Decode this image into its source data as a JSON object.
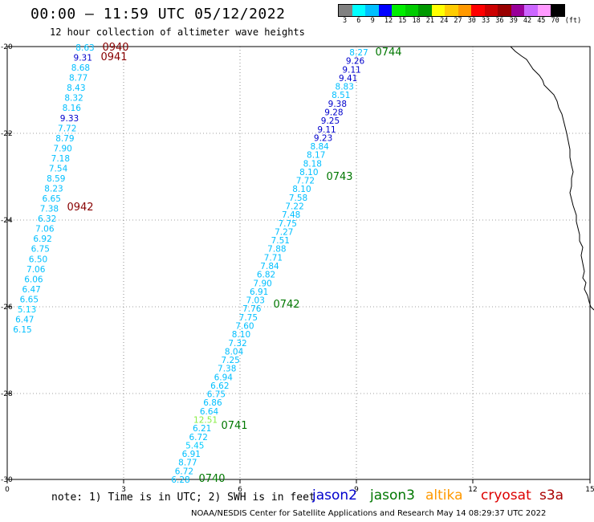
{
  "title": "00:00 – 11:59 UTC 05/12/2022",
  "subtitle": "12 hour collection of altimeter wave heights",
  "color_scale": {
    "colors": [
      "#808080",
      "#00ffff",
      "#00bfff",
      "#0000ff",
      "#00ee00",
      "#00cc00",
      "#009900",
      "#ffff00",
      "#ffcc00",
      "#ff9900",
      "#ff0000",
      "#cc0000",
      "#990000",
      "#990099",
      "#cc66ff",
      "#ff99ff",
      "#000000"
    ],
    "labels": [
      "3",
      "6",
      "9",
      "12",
      "15",
      "18",
      "21",
      "24",
      "27",
      "30",
      "33",
      "36",
      "39",
      "42",
      "45",
      "70",
      "(ft)"
    ]
  },
  "satellite_colors": {
    "jason2": "#0000cc",
    "jason3": "#007700",
    "altika": "#ff9900",
    "cryosat": "#dd0000",
    "s3a": "#aa0000",
    "pass_jason3": "#007700",
    "pass_s3a": "#880000"
  },
  "map": {
    "x_ticks": [
      "0",
      "3",
      "6",
      "9",
      "12",
      "15"
    ],
    "y_ticks": [
      "-20",
      "-22",
      "-24",
      "-26",
      "-28",
      "-30"
    ]
  },
  "passes": [
    {
      "label": "0940",
      "color": "#880000"
    },
    {
      "label": "0941",
      "color": "#880000"
    },
    {
      "label": "0942",
      "color": "#880000"
    },
    {
      "label": "0744",
      "color": "#007700"
    },
    {
      "label": "0743",
      "color": "#007700"
    },
    {
      "label": "0742",
      "color": "#007700"
    },
    {
      "label": "0741",
      "color": "#007700"
    },
    {
      "label": "0740",
      "color": "#007700"
    }
  ],
  "track_west_values": [
    "8.63",
    "9.31",
    "8.68",
    "8.77",
    "8.43",
    "8.32",
    "8.16",
    "9.33",
    "7.72",
    "8.79",
    "7.90",
    "7.18",
    "7.54",
    "8.59",
    "8.23",
    "6.65",
    "7.38",
    "6.32",
    "7.06",
    "6.92",
    "6.75",
    "6.50",
    "7.06",
    "6.06",
    "6.47",
    "6.65",
    "5.13",
    "6.47",
    "6.15"
  ],
  "track_west_colors": [
    "#00bfff",
    "#0000cc",
    "#00bfff",
    "#00bfff",
    "#00bfff",
    "#00bfff",
    "#00bfff",
    "#0000cc",
    "#00bfff",
    "#00bfff",
    "#00bfff",
    "#00bfff",
    "#00bfff",
    "#00bfff",
    "#00bfff",
    "#00bfff",
    "#00bfff",
    "#00bfff",
    "#00bfff",
    "#00bfff",
    "#00bfff",
    "#00bfff",
    "#00bfff",
    "#00bfff",
    "#00bfff",
    "#00bfff",
    "#00ccff",
    "#00bfff",
    "#00bfff"
  ],
  "track_east_values": [
    "8.27",
    "9.26",
    "9.11",
    "9.41",
    "8.83",
    "8.51",
    "9.38",
    "9.28",
    "9.25",
    "9.11",
    "9.23",
    "8.84",
    "8.17",
    "8.18",
    "8.10",
    "7.72",
    "8.10",
    "7.58",
    "7.22",
    "7.48",
    "7.75",
    "7.27",
    "7.51",
    "7.88",
    "7.71",
    "7.84",
    "6.82",
    "7.90",
    "6.91",
    "7.03",
    "7.76",
    "7.75",
    "7.60",
    "8.10",
    "7.32",
    "8.04",
    "7.25",
    "7.38",
    "6.94",
    "6.62",
    "6.75",
    "6.86",
    "6.64",
    "12.51",
    "6.21",
    "6.72",
    "5.45",
    "6.91",
    "8.77",
    "6.72",
    "6.28"
  ],
  "track_east_colors": [
    "#00bfff",
    "#0000cc",
    "#0000cc",
    "#0000cc",
    "#00bfff",
    "#00bfff",
    "#0000cc",
    "#0000cc",
    "#0000cc",
    "#0000cc",
    "#0000cc",
    "#00bfff",
    "#00bfff",
    "#00bfff",
    "#00bfff",
    "#00bfff",
    "#00bfff",
    "#00bfff",
    "#00bfff",
    "#00bfff",
    "#00bfff",
    "#00bfff",
    "#00bfff",
    "#00bfff",
    "#00bfff",
    "#00bfff",
    "#00bfff",
    "#00bfff",
    "#00bfff",
    "#00bfff",
    "#00bfff",
    "#00bfff",
    "#00bfff",
    "#00bfff",
    "#00bfff",
    "#00bfff",
    "#00bfff",
    "#00bfff",
    "#00bfff",
    "#00bfff",
    "#00bfff",
    "#00bfff",
    "#00bfff",
    "#88ee44",
    "#00bfff",
    "#00bfff",
    "#00ccff",
    "#00bfff",
    "#00bfff",
    "#00bfff",
    "#00bfff"
  ],
  "note": "note: 1) Time is in UTC; 2) SWH is in feet",
  "legend": [
    "jason2",
    "jason3",
    "altika",
    "cryosat",
    "s3a"
  ],
  "credit": "NOAA/NESDIS Center for Satellite Applications and Research   May 14 08:29:37 UTC 2022"
}
